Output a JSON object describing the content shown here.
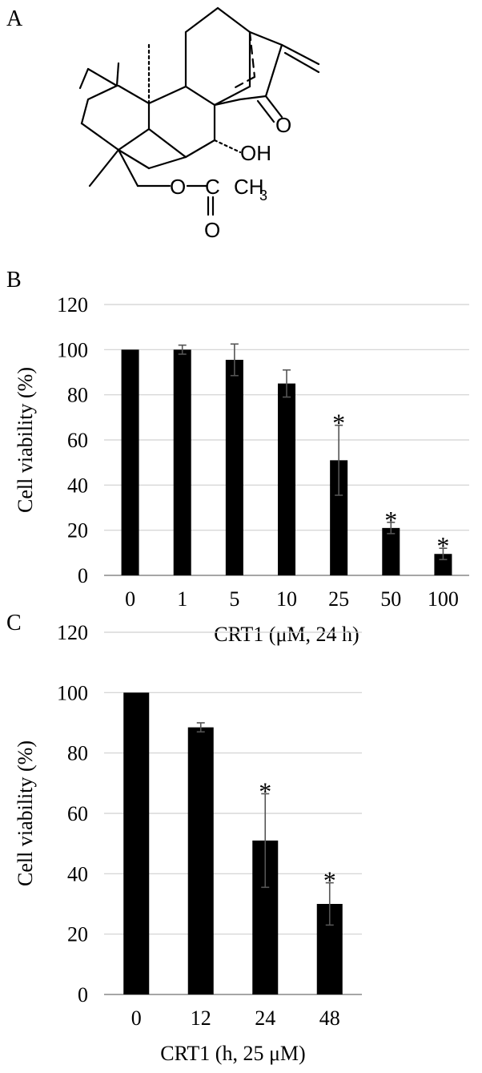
{
  "panels": {
    "a_label": "A",
    "b_label": "B",
    "c_label": "C"
  },
  "structure": {
    "atoms": [
      "O",
      "OH",
      "O",
      "C",
      "CH",
      "3",
      "O"
    ]
  },
  "chart_data": [
    {
      "type": "bar",
      "xlabel": "CRT1 (μM, 24 h)",
      "ylabel": "Cell viability (%)",
      "ylim": [
        0,
        120
      ],
      "yticks": [
        0,
        20,
        40,
        60,
        80,
        100,
        120
      ],
      "grid": true,
      "categories": [
        "0",
        "1",
        "5",
        "10",
        "25",
        "50",
        "100"
      ],
      "values": [
        100,
        100,
        95.5,
        85,
        51,
        21,
        9.5
      ],
      "error": [
        0,
        2,
        7,
        6,
        15.5,
        2.5,
        2.5
      ],
      "significance": [
        "",
        "",
        "",
        "",
        "*",
        "*",
        "*"
      ]
    },
    {
      "type": "bar",
      "xlabel": "CRT1 (h, 25 μM)",
      "ylabel": "Cell viability (%)",
      "ylim": [
        0,
        120
      ],
      "yticks": [
        0,
        20,
        40,
        60,
        80,
        100,
        120
      ],
      "grid": true,
      "categories": [
        "0",
        "12",
        "24",
        "48"
      ],
      "values": [
        100,
        88.5,
        51,
        30
      ],
      "error": [
        0,
        1.5,
        15.5,
        7
      ],
      "significance": [
        "",
        "",
        "*",
        "*"
      ]
    }
  ]
}
